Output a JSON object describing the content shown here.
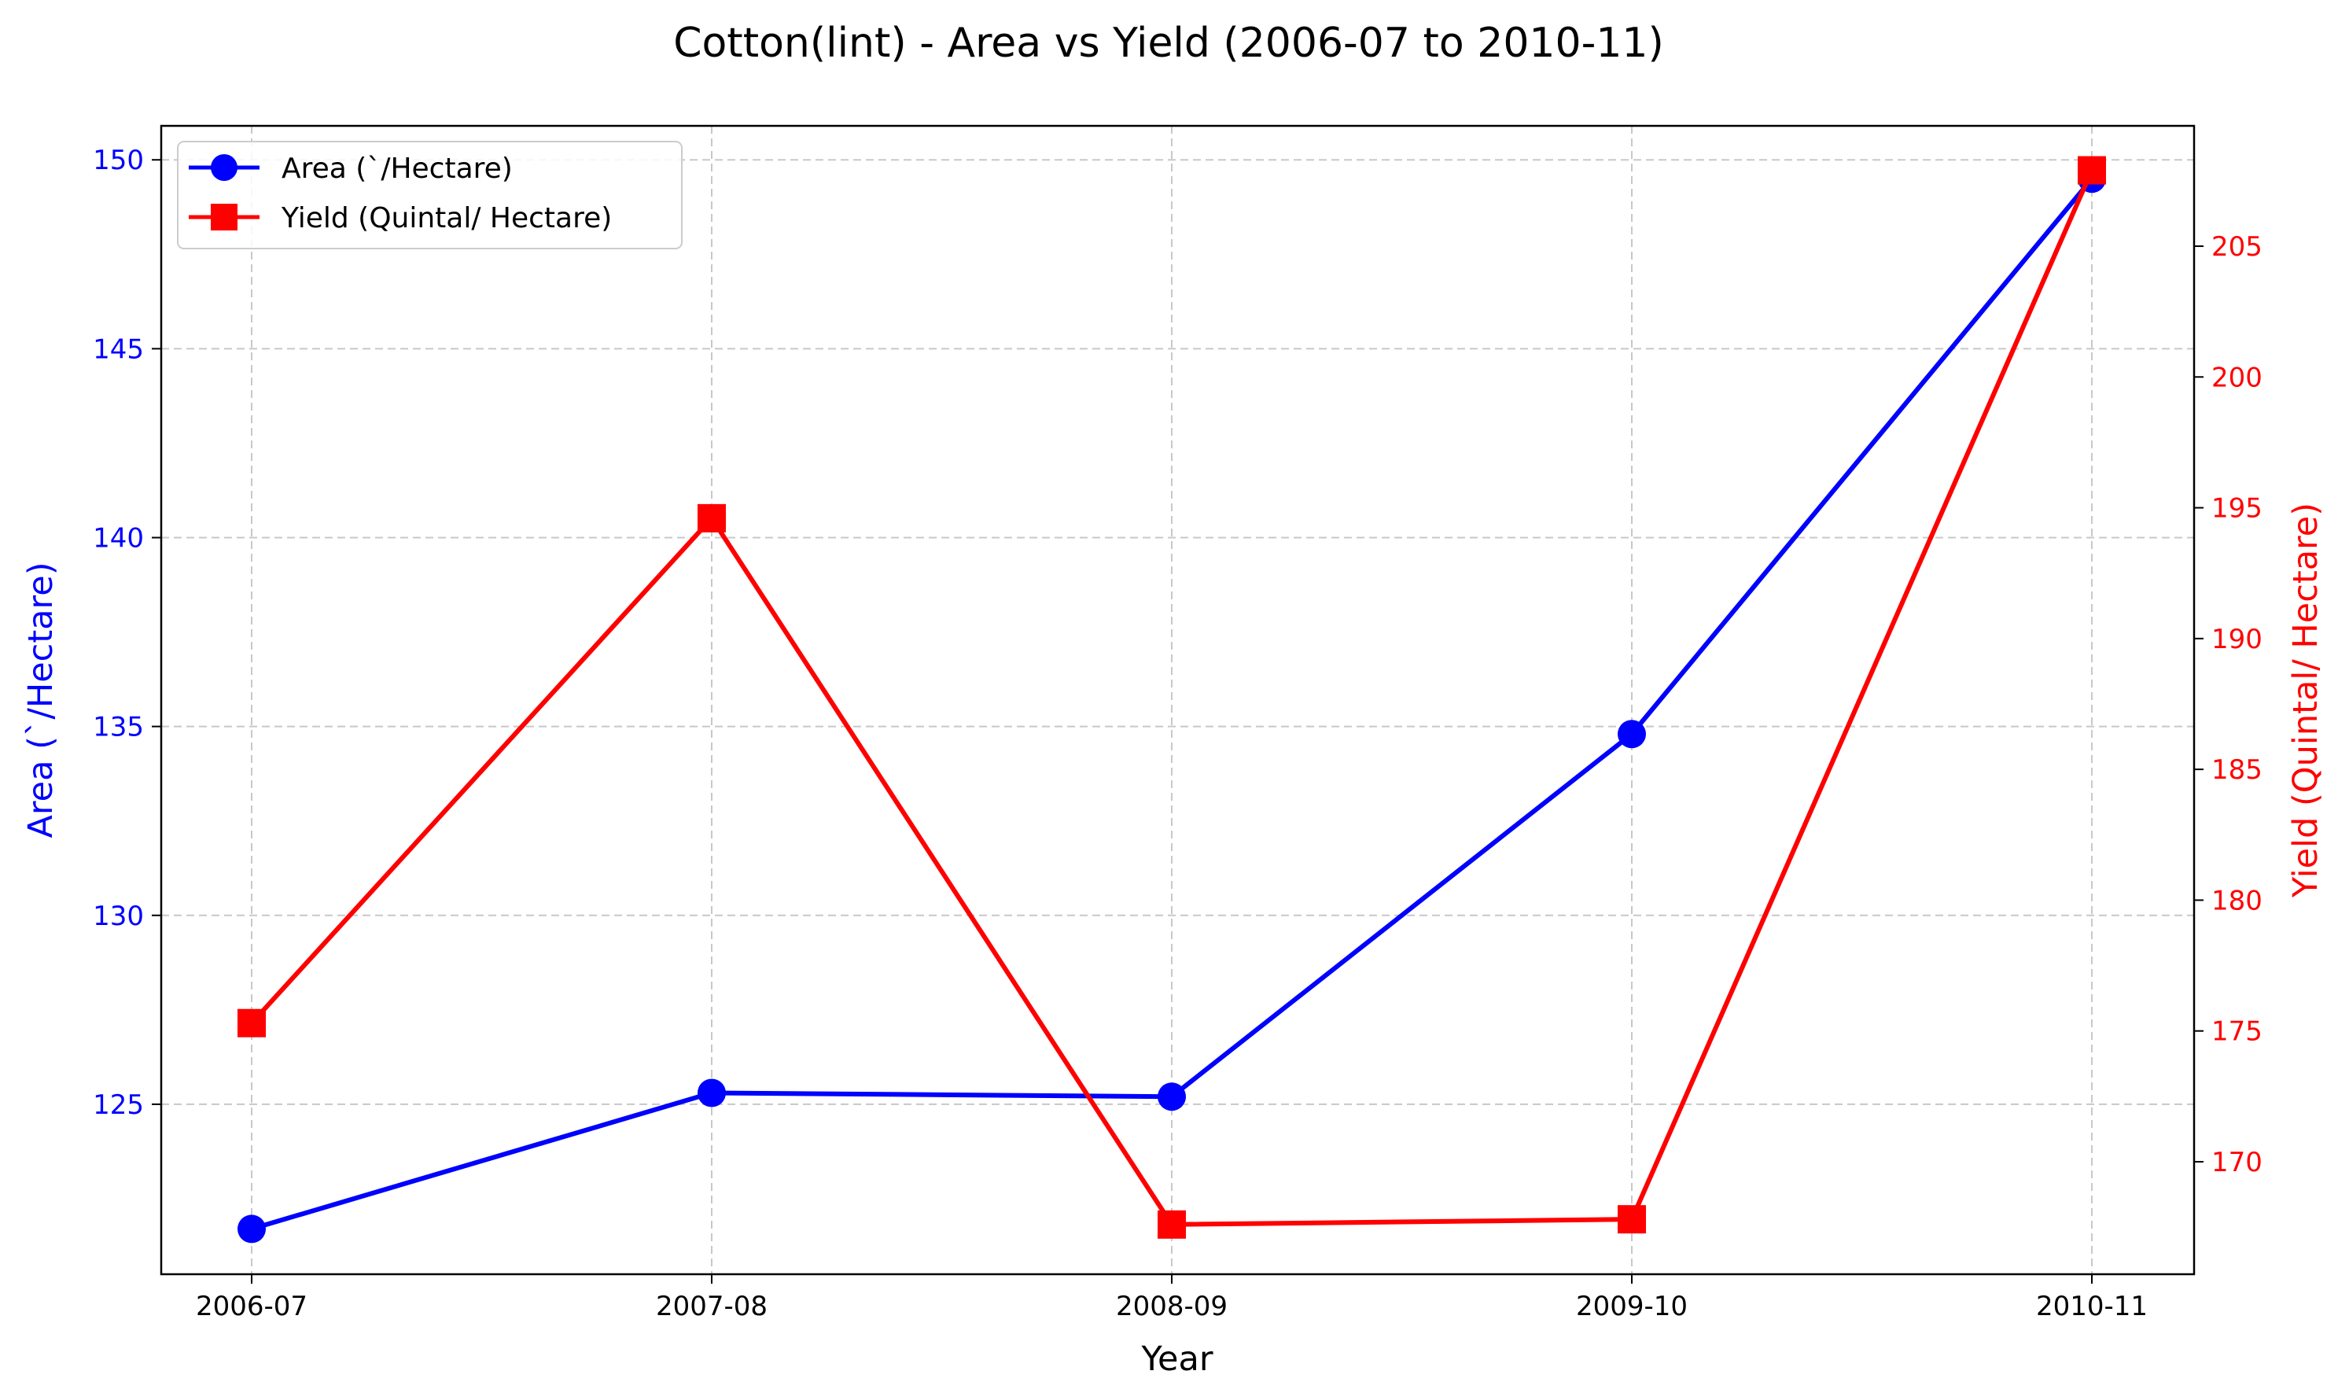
{
  "chart_data": {
    "type": "line",
    "title": "Cotton(lint) - Area vs Yield (2006-07 to 2010-11)",
    "xlabel": "Year",
    "categories": [
      "2006-07",
      "2007-08",
      "2008-09",
      "2009-10",
      "2010-11"
    ],
    "grid": true,
    "legend_position": "top-left",
    "left_axis": {
      "label": "Area (`/Hectare)",
      "color": "#0000ff",
      "ylim": [
        120.5,
        150.9
      ],
      "ticks": [
        125,
        130,
        135,
        140,
        145,
        150
      ]
    },
    "right_axis": {
      "label": "Yield (Quintal/ Hectare)",
      "color": "#ff0000",
      "ylim": [
        165.7,
        209.6
      ],
      "ticks": [
        170,
        175,
        180,
        185,
        190,
        195,
        200,
        205
      ]
    },
    "series": [
      {
        "name": "Area (`/Hectare)",
        "axis": "left",
        "color": "#0000ff",
        "marker": "circle",
        "values": [
          121.7,
          125.3,
          125.2,
          134.8,
          149.5
        ]
      },
      {
        "name": "Yield (Quintal/ Hectare)",
        "axis": "right",
        "color": "#ff0000",
        "marker": "square",
        "values": [
          175.3,
          194.6,
          167.6,
          167.8,
          207.9
        ]
      }
    ]
  }
}
